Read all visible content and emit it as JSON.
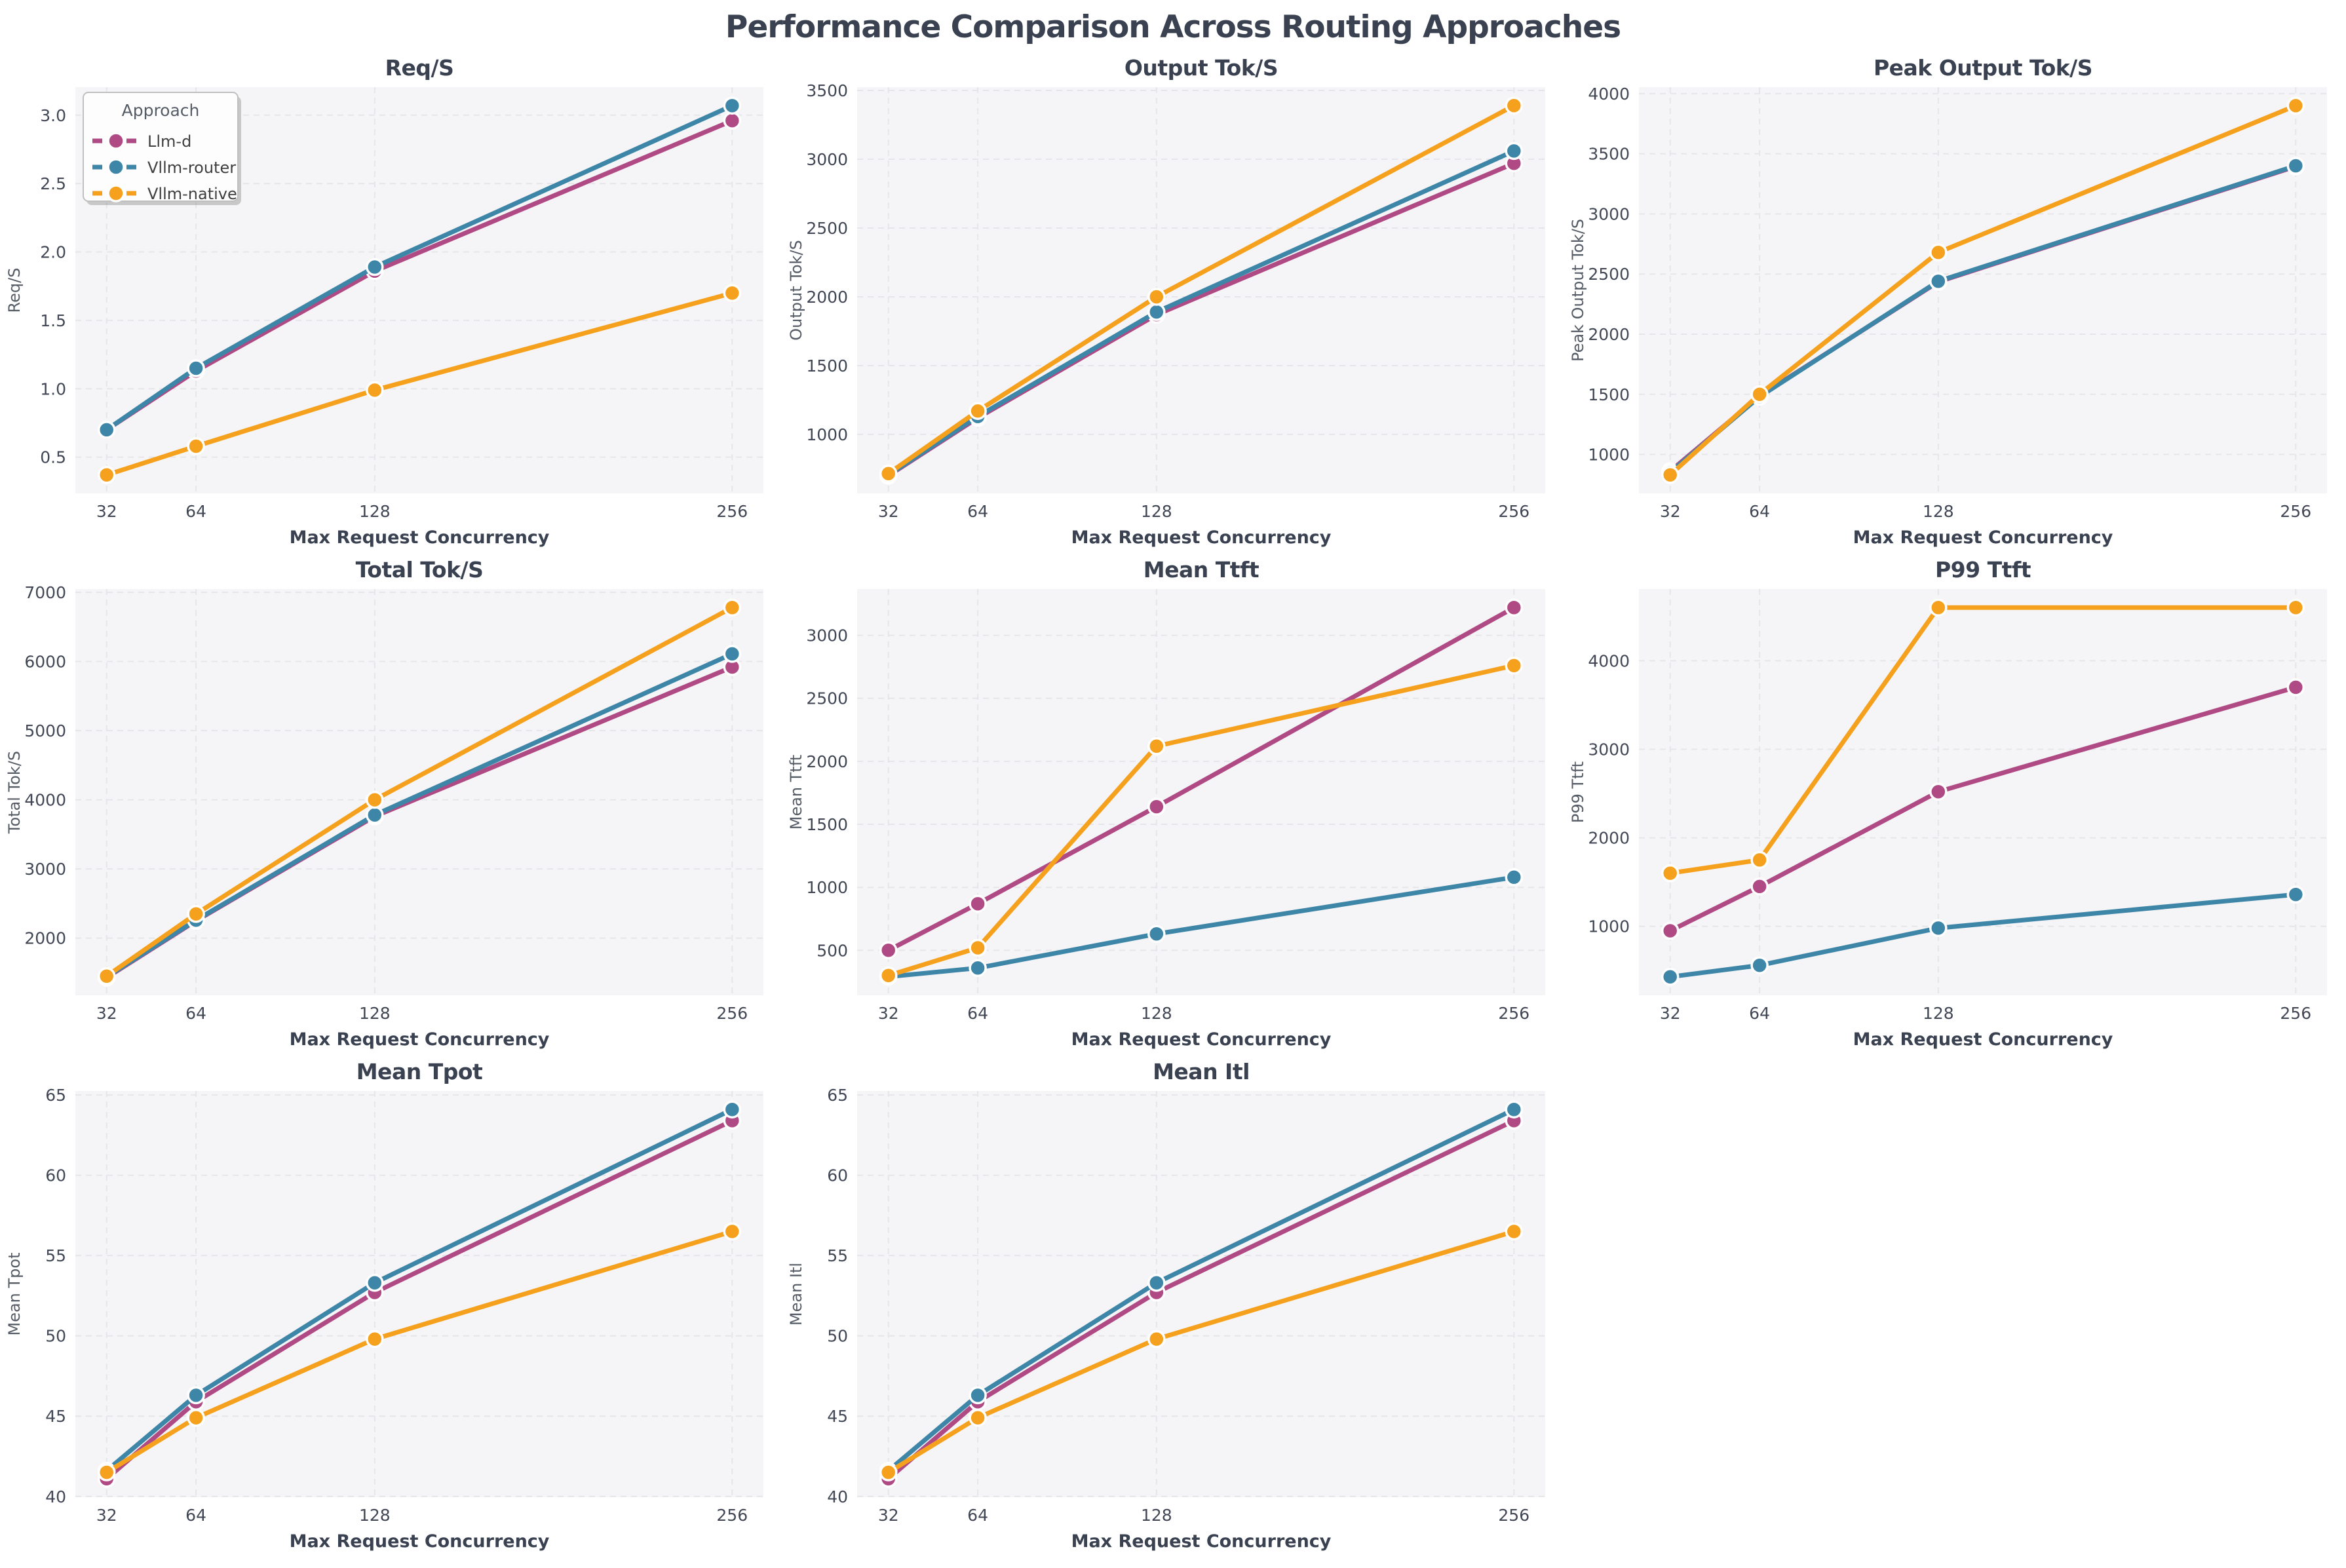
{
  "page_title": "Performance Comparison Across Routing Approaches",
  "colors": {
    "llm_d": "#B04A85",
    "vllm_router": "#3E86A8",
    "vllm_native": "#F5A11D",
    "heading": "#3a4150",
    "tick_label": "#414754",
    "axis_label": "#555c66",
    "plot_bg": "#f5f4f6",
    "gridline": "#e6e6ea",
    "legend_bg": "#fdfdfd",
    "legend_border": "#bfbfbf"
  },
  "legend": {
    "title": "Approach",
    "entries": [
      "Llm-d",
      "Vllm-router",
      "Vllm-native"
    ]
  },
  "x_axis": {
    "label": "Max Request Concurrency",
    "ticks": [
      32,
      64,
      128,
      256
    ],
    "lim": [
      20.8,
      267.2
    ]
  },
  "chart_data": [
    {
      "type": "line",
      "title": "Req/S",
      "ylabel": "Req/S",
      "xlabel": "Max Request Concurrency",
      "x": [
        32,
        64,
        128,
        256
      ],
      "ylim": [
        0.235,
        3.205
      ],
      "yticks": [
        0.5,
        1.0,
        1.5,
        2.0,
        2.5,
        3.0
      ],
      "ytick_labels": [
        "0.5",
        "1.0",
        "1.5",
        "2.0",
        "2.5",
        "3.0"
      ],
      "grid": true,
      "legend": true,
      "series": [
        {
          "name": "Llm-d",
          "color_key": "llm_d",
          "values": [
            0.7,
            1.13,
            1.86,
            2.96
          ]
        },
        {
          "name": "Vllm-router",
          "color_key": "vllm_router",
          "values": [
            0.7,
            1.15,
            1.89,
            3.07
          ]
        },
        {
          "name": "Vllm-native",
          "color_key": "vllm_native",
          "values": [
            0.37,
            0.58,
            0.99,
            1.7
          ]
        }
      ]
    },
    {
      "type": "line",
      "title": "Output Tok/S",
      "ylabel": "Output Tok/S",
      "xlabel": "Max Request Concurrency",
      "x": [
        32,
        64,
        128,
        256
      ],
      "ylim": [
        571,
        3524
      ],
      "yticks": [
        1000,
        1500,
        2000,
        2500,
        3000,
        3500
      ],
      "ytick_labels": [
        "1000",
        "1500",
        "2000",
        "2500",
        "3000",
        "3500"
      ],
      "grid": true,
      "legend": false,
      "series": [
        {
          "name": "Llm-d",
          "color_key": "llm_d",
          "values": [
            700,
            1120,
            1870,
            2970
          ]
        },
        {
          "name": "Vllm-router",
          "color_key": "vllm_router",
          "values": [
            705,
            1130,
            1890,
            3060
          ]
        },
        {
          "name": "Vllm-native",
          "color_key": "vllm_native",
          "values": [
            715,
            1170,
            2000,
            3390
          ]
        }
      ]
    },
    {
      "type": "line",
      "title": "Peak Output Tok/S",
      "ylabel": "Peak Output Tok/S",
      "xlabel": "Max Request Concurrency",
      "x": [
        32,
        64,
        128,
        256
      ],
      "ylim": [
        676,
        4054
      ],
      "yticks": [
        1000,
        1500,
        2000,
        2500,
        3000,
        3500,
        4000
      ],
      "ytick_labels": [
        "1000",
        "1500",
        "2000",
        "2500",
        "3000",
        "3500",
        "4000"
      ],
      "grid": true,
      "legend": false,
      "series": [
        {
          "name": "Llm-d",
          "color_key": "llm_d",
          "values": [
            860,
            1485,
            2435,
            3395
          ]
        },
        {
          "name": "Vllm-router",
          "color_key": "vllm_router",
          "values": [
            850,
            1480,
            2440,
            3400
          ]
        },
        {
          "name": "Vllm-native",
          "color_key": "vllm_native",
          "values": [
            830,
            1500,
            2680,
            3900
          ]
        }
      ]
    },
    {
      "type": "line",
      "title": "Total Tok/S",
      "ylabel": "Total Tok/S",
      "xlabel": "Max Request Concurrency",
      "x": [
        32,
        64,
        128,
        256
      ],
      "ylim": [
        1173,
        7047
      ],
      "yticks": [
        2000,
        3000,
        4000,
        5000,
        6000,
        7000
      ],
      "ytick_labels": [
        "2000",
        "3000",
        "4000",
        "5000",
        "6000",
        "7000"
      ],
      "grid": true,
      "legend": false,
      "series": [
        {
          "name": "Llm-d",
          "color_key": "llm_d",
          "values": [
            1430,
            2250,
            3760,
            5920
          ]
        },
        {
          "name": "Vllm-router",
          "color_key": "vllm_router",
          "values": [
            1440,
            2260,
            3780,
            6110
          ]
        },
        {
          "name": "Vllm-native",
          "color_key": "vllm_native",
          "values": [
            1450,
            2350,
            4000,
            6780
          ]
        }
      ]
    },
    {
      "type": "line",
      "title": "Mean Ttft",
      "ylabel": "Mean Ttft",
      "xlabel": "Max Request Concurrency",
      "x": [
        32,
        64,
        128,
        256
      ],
      "ylim": [
        143,
        3367
      ],
      "yticks": [
        500,
        1000,
        1500,
        2000,
        2500,
        3000
      ],
      "ytick_labels": [
        "500",
        "1000",
        "1500",
        "2000",
        "2500",
        "3000"
      ],
      "grid": true,
      "legend": false,
      "series": [
        {
          "name": "Llm-d",
          "color_key": "llm_d",
          "values": [
            500,
            870,
            1640,
            3220
          ]
        },
        {
          "name": "Vllm-router",
          "color_key": "vllm_router",
          "values": [
            290,
            360,
            630,
            1080
          ]
        },
        {
          "name": "Vllm-native",
          "color_key": "vllm_native",
          "values": [
            300,
            520,
            2120,
            2760
          ]
        }
      ]
    },
    {
      "type": "line",
      "title": "P99 Ttft",
      "ylabel": "P99 Ttft",
      "xlabel": "Max Request Concurrency",
      "x": [
        32,
        64,
        128,
        256
      ],
      "ylim": [
        221,
        4809
      ],
      "yticks": [
        1000,
        2000,
        3000,
        4000
      ],
      "ytick_labels": [
        "1000",
        "2000",
        "3000",
        "4000"
      ],
      "grid": true,
      "legend": false,
      "series": [
        {
          "name": "Llm-d",
          "color_key": "llm_d",
          "values": [
            950,
            1450,
            2520,
            3700
          ]
        },
        {
          "name": "Vllm-router",
          "color_key": "vllm_router",
          "values": [
            430,
            560,
            980,
            1360
          ]
        },
        {
          "name": "Vllm-native",
          "color_key": "vllm_native",
          "values": [
            1600,
            1750,
            4600,
            4600
          ]
        }
      ]
    },
    {
      "type": "line",
      "title": "Mean Tpot",
      "ylabel": "Mean Tpot",
      "xlabel": "Max Request Concurrency",
      "x": [
        32,
        64,
        128,
        256
      ],
      "ylim": [
        39.95,
        65.25
      ],
      "yticks": [
        40,
        45,
        50,
        55,
        60,
        65
      ],
      "ytick_labels": [
        "40",
        "45",
        "50",
        "55",
        "60",
        "65"
      ],
      "grid": true,
      "legend": false,
      "series": [
        {
          "name": "Llm-d",
          "color_key": "llm_d",
          "values": [
            41.1,
            45.9,
            52.7,
            63.4
          ]
        },
        {
          "name": "Vllm-router",
          "color_key": "vllm_router",
          "values": [
            41.6,
            46.3,
            53.3,
            64.1
          ]
        },
        {
          "name": "Vllm-native",
          "color_key": "vllm_native",
          "values": [
            41.5,
            44.9,
            49.8,
            56.5
          ]
        }
      ]
    },
    {
      "type": "line",
      "title": "Mean Itl",
      "ylabel": "Mean Itl",
      "xlabel": "Max Request Concurrency",
      "x": [
        32,
        64,
        128,
        256
      ],
      "ylim": [
        39.95,
        65.25
      ],
      "yticks": [
        40,
        45,
        50,
        55,
        60,
        65
      ],
      "ytick_labels": [
        "40",
        "45",
        "50",
        "55",
        "60",
        "65"
      ],
      "grid": true,
      "legend": false,
      "series": [
        {
          "name": "Llm-d",
          "color_key": "llm_d",
          "values": [
            41.1,
            45.9,
            52.7,
            63.4
          ]
        },
        {
          "name": "Vllm-router",
          "color_key": "vllm_router",
          "values": [
            41.6,
            46.3,
            53.3,
            64.1
          ]
        },
        {
          "name": "Vllm-native",
          "color_key": "vllm_native",
          "values": [
            41.5,
            44.9,
            49.8,
            56.5
          ]
        }
      ]
    }
  ]
}
